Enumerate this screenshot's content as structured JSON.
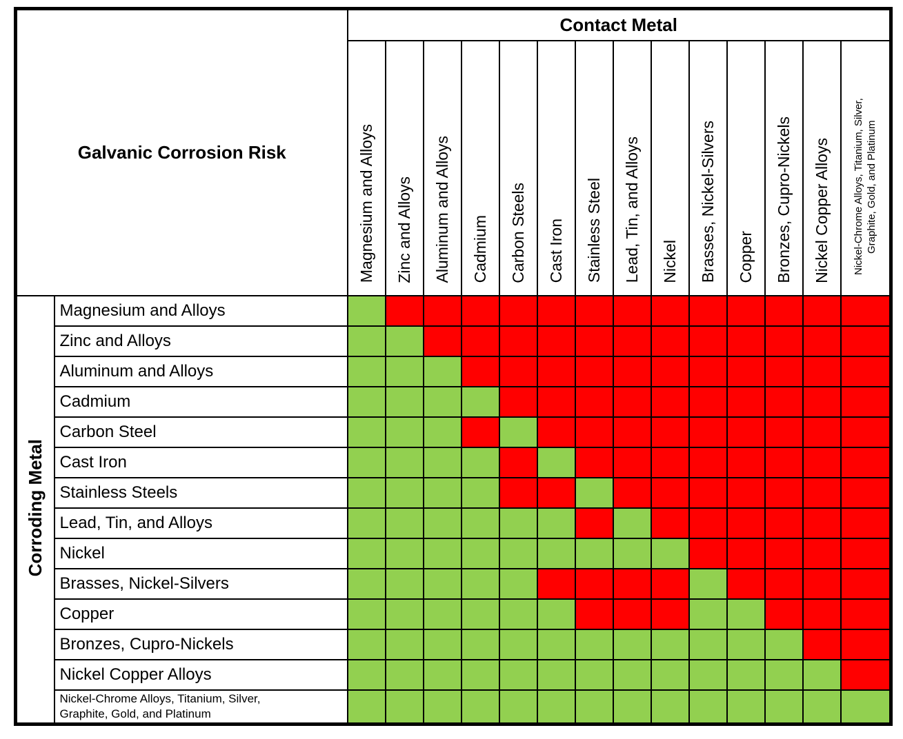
{
  "header": {
    "title": "Galvanic Corrosion Risk",
    "contact_metal": "Contact Metal",
    "corroding_metal": "Corroding Metal"
  },
  "colors": {
    "low_risk_green": "#92D050",
    "high_risk_red": "#FF0000",
    "grid_black": "#000000"
  },
  "chart_data": {
    "type": "heatmap",
    "title": "Galvanic Corrosion Risk",
    "x_header": "Contact Metal",
    "y_header": "Corroding Metal",
    "value_colors": {
      "G": "#92D050",
      "R": "#FF0000"
    },
    "columns": [
      "Magnesium and Alloys",
      "Zinc and Alloys",
      "Aluminum and Alloys",
      "Cadmium",
      "Carbon Steels",
      "Cast Iron",
      "Stainless Steel",
      "Lead, Tin, and Alloys",
      "Nickel",
      "Brasses, Nickel-Silvers",
      "Copper",
      "Bronzes, Cupro-Nickels",
      "Nickel Copper Alloys",
      "Nickel-Chrome Alloys, Titanium, Silver, Graphite, Gold, and Platinum"
    ],
    "rows": [
      "Magnesium and Alloys",
      "Zinc and Alloys",
      "Aluminum and Alloys",
      "Cadmium",
      "Carbon Steel",
      "Cast Iron",
      "Stainless Steels",
      "Lead, Tin, and Alloys",
      "Nickel",
      "Brasses, Nickel-Silvers",
      "Copper",
      "Bronzes, Cupro-Nickels",
      "Nickel Copper Alloys",
      "Nickel-Chrome Alloys, Titanium, Silver, Graphite, Gold, and Platinum"
    ],
    "matrix": [
      [
        "G",
        "R",
        "R",
        "R",
        "R",
        "R",
        "R",
        "R",
        "R",
        "R",
        "R",
        "R",
        "R",
        "R"
      ],
      [
        "G",
        "G",
        "R",
        "R",
        "R",
        "R",
        "R",
        "R",
        "R",
        "R",
        "R",
        "R",
        "R",
        "R"
      ],
      [
        "G",
        "G",
        "G",
        "R",
        "R",
        "R",
        "R",
        "R",
        "R",
        "R",
        "R",
        "R",
        "R",
        "R"
      ],
      [
        "G",
        "G",
        "G",
        "G",
        "R",
        "R",
        "R",
        "R",
        "R",
        "R",
        "R",
        "R",
        "R",
        "R"
      ],
      [
        "G",
        "G",
        "G",
        "R",
        "G",
        "R",
        "R",
        "R",
        "R",
        "R",
        "R",
        "R",
        "R",
        "R"
      ],
      [
        "G",
        "G",
        "G",
        "G",
        "R",
        "G",
        "R",
        "R",
        "R",
        "R",
        "R",
        "R",
        "R",
        "R"
      ],
      [
        "G",
        "G",
        "G",
        "G",
        "R",
        "R",
        "G",
        "R",
        "R",
        "R",
        "R",
        "R",
        "R",
        "R"
      ],
      [
        "G",
        "G",
        "G",
        "G",
        "G",
        "G",
        "R",
        "G",
        "R",
        "R",
        "R",
        "R",
        "R",
        "R"
      ],
      [
        "G",
        "G",
        "G",
        "G",
        "G",
        "G",
        "G",
        "G",
        "G",
        "R",
        "R",
        "R",
        "R",
        "R"
      ],
      [
        "G",
        "G",
        "G",
        "G",
        "G",
        "R",
        "R",
        "R",
        "R",
        "G",
        "R",
        "R",
        "R",
        "R"
      ],
      [
        "G",
        "G",
        "G",
        "G",
        "G",
        "G",
        "R",
        "R",
        "R",
        "G",
        "G",
        "R",
        "R",
        "R"
      ],
      [
        "G",
        "G",
        "G",
        "G",
        "G",
        "G",
        "G",
        "G",
        "G",
        "G",
        "G",
        "G",
        "R",
        "R"
      ],
      [
        "G",
        "G",
        "G",
        "G",
        "G",
        "G",
        "G",
        "G",
        "G",
        "G",
        "G",
        "G",
        "G",
        "R"
      ],
      [
        "G",
        "G",
        "G",
        "G",
        "G",
        "G",
        "G",
        "G",
        "G",
        "G",
        "G",
        "G",
        "G",
        "G"
      ]
    ]
  }
}
